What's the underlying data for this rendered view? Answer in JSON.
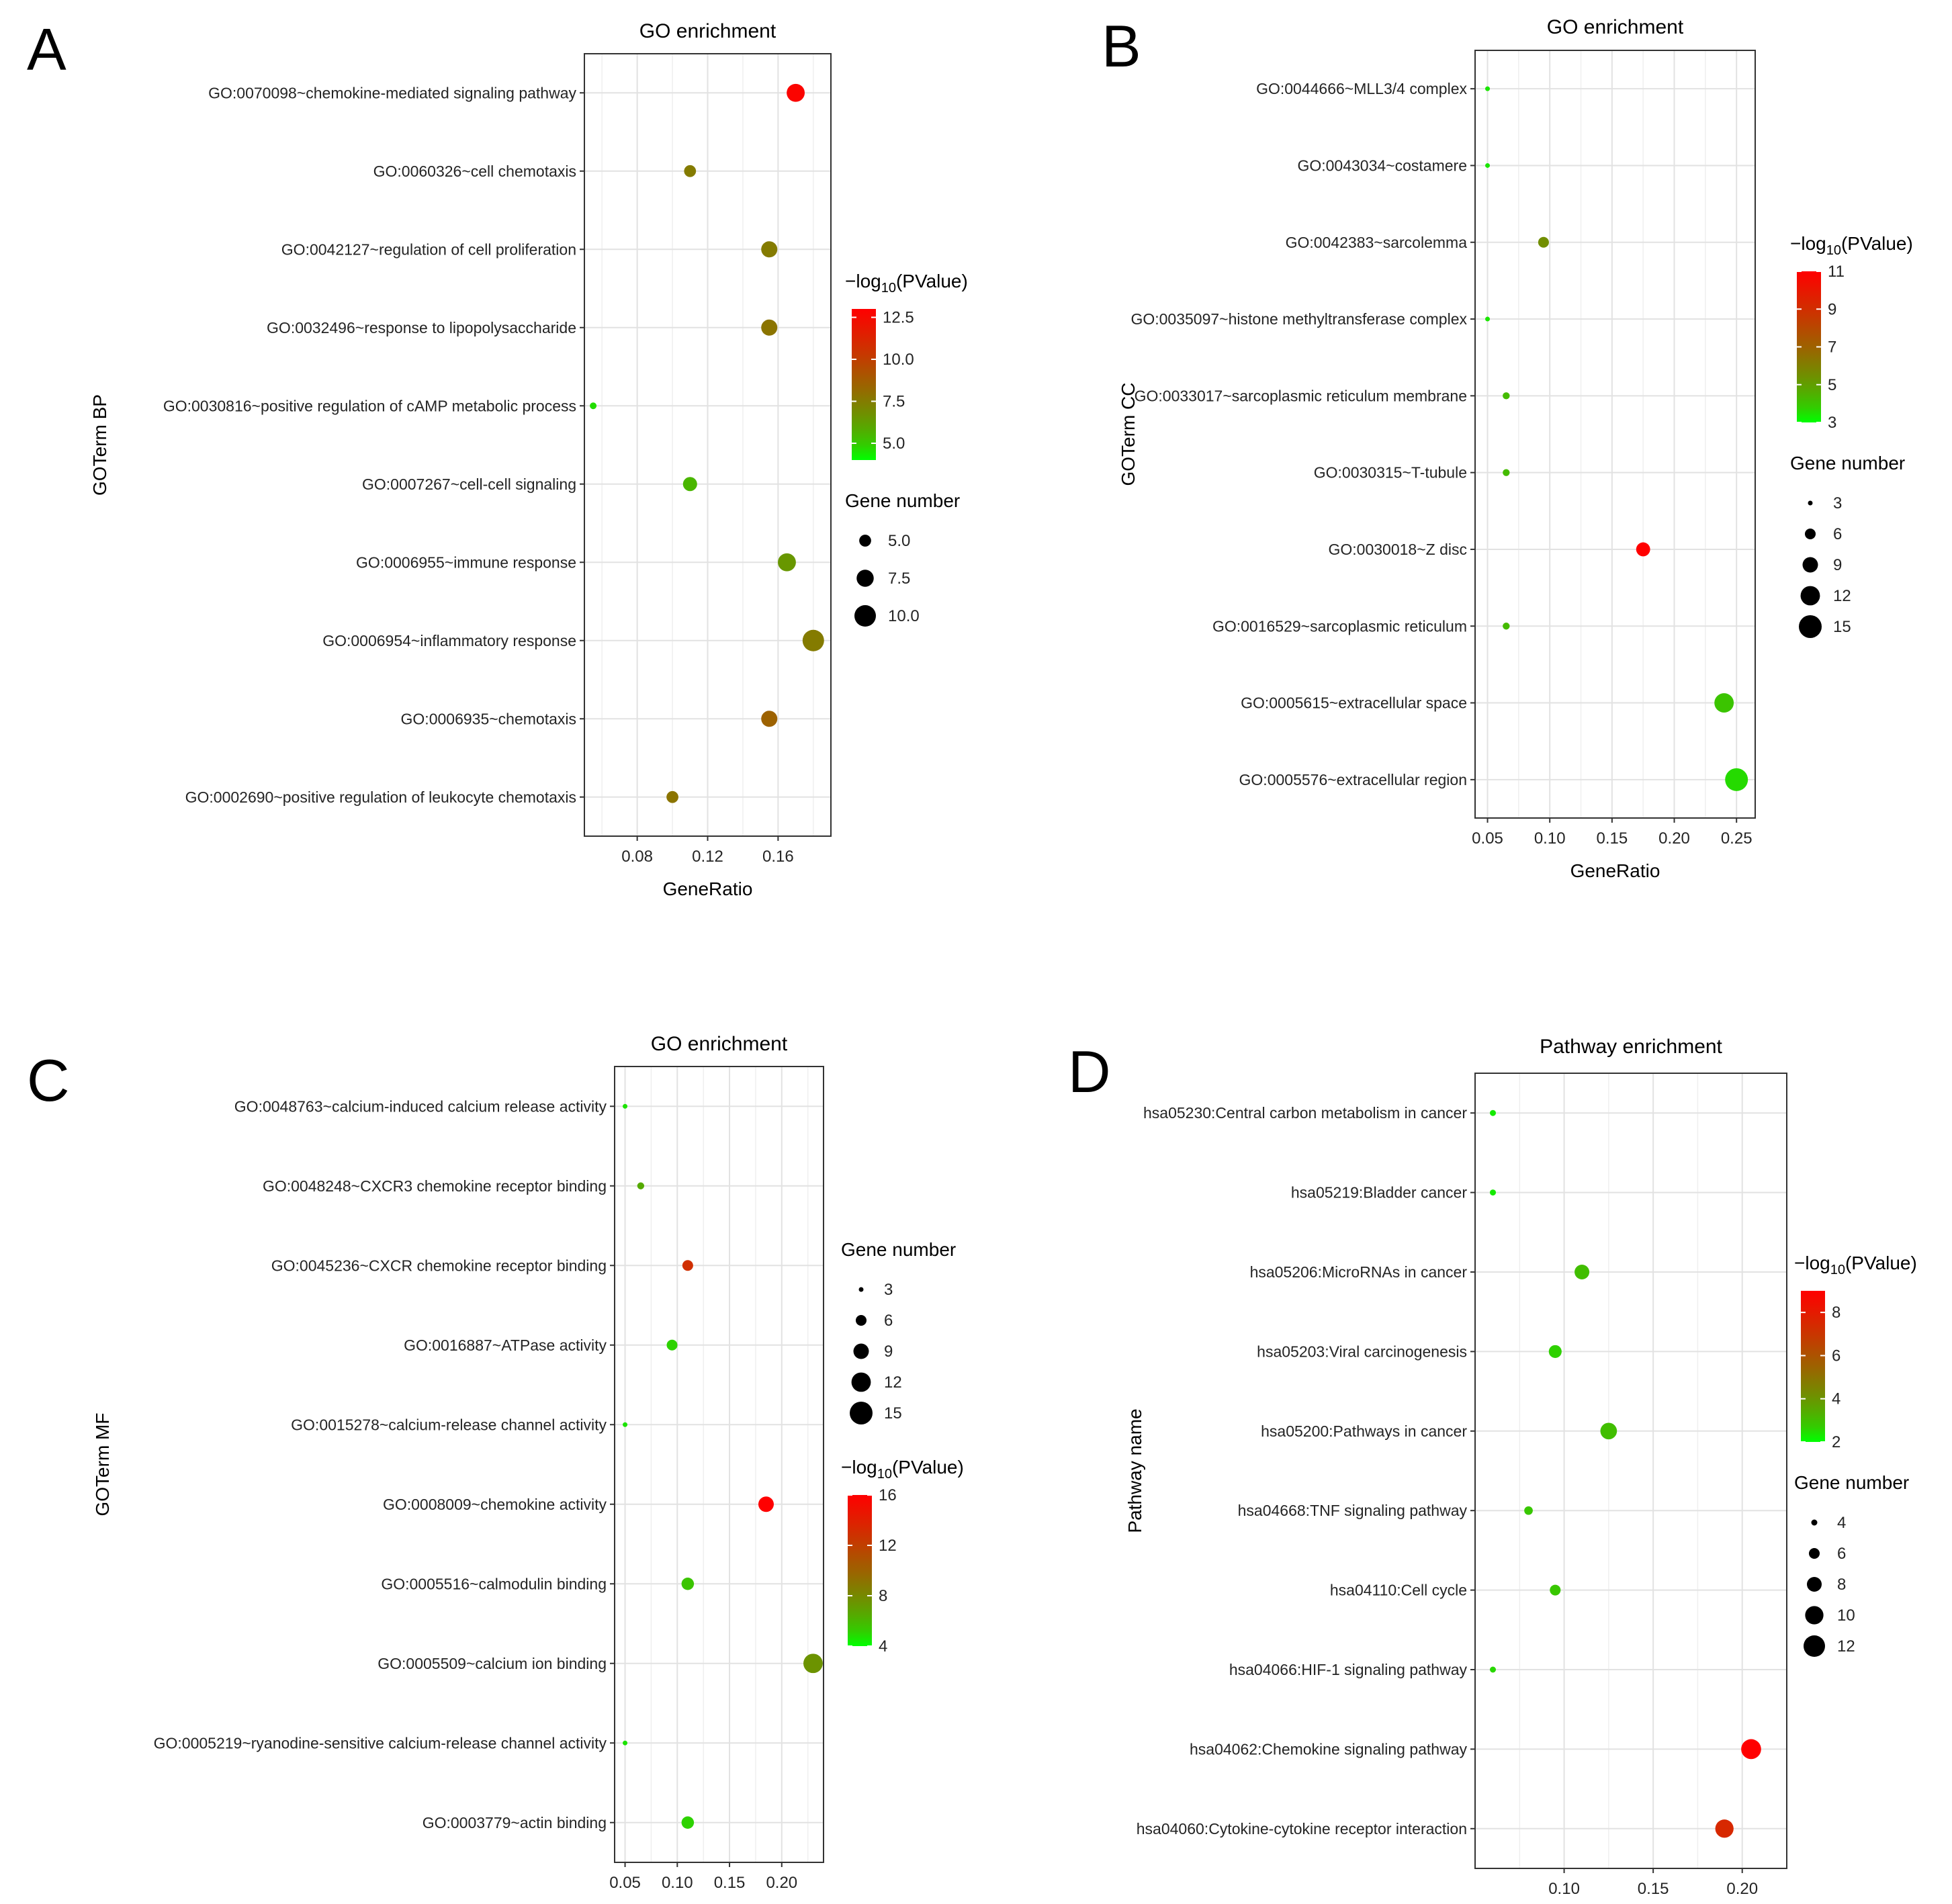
{
  "figure": {
    "background": "#ffffff",
    "low_color": "#00ff00",
    "high_color": "#ff0000"
  },
  "chart_data": [
    {
      "panel_label": "A",
      "type": "scatter",
      "title": "GO enrichment",
      "xlabel": "GeneRatio",
      "ylabel": "GOTerm BP",
      "xlim": [
        0.05,
        0.19
      ],
      "xticks": [
        0.08,
        0.12,
        0.16
      ],
      "xtick_labels": [
        "0.08",
        "0.12",
        "0.16"
      ],
      "color_legend": {
        "title_prefix": "−log",
        "title_sub": "10",
        "title_suffix": "(PValue)",
        "min": 4,
        "max": 13,
        "ticks": [
          12.5,
          10.0,
          7.5,
          5.0
        ],
        "tick_labels": [
          "12.5",
          "10.0",
          "7.5",
          "5.0"
        ]
      },
      "size_legend": {
        "title": "Gene number",
        "domain": [
          3,
          10
        ],
        "values": [
          5,
          7.5,
          10
        ],
        "labels": [
          "5.0",
          "7.5",
          "10.0"
        ]
      },
      "rows": [
        {
          "category": "GO:0070098~chemokine-mediated signaling pathway",
          "gene_ratio": 0.17,
          "gene_number": 8,
          "neg_log10_pvalue": 12.8
        },
        {
          "category": "GO:0060326~cell chemotaxis",
          "gene_ratio": 0.11,
          "gene_number": 5,
          "neg_log10_pvalue": 7.5
        },
        {
          "category": "GO:0042127~regulation of cell proliferation",
          "gene_ratio": 0.155,
          "gene_number": 7,
          "neg_log10_pvalue": 7.5
        },
        {
          "category": "GO:0032496~response to lipopolysaccharide",
          "gene_ratio": 0.155,
          "gene_number": 7,
          "neg_log10_pvalue": 7.8
        },
        {
          "category": "GO:0030816~positive regulation of cAMP metabolic process",
          "gene_ratio": 0.055,
          "gene_number": 3,
          "neg_log10_pvalue": 4.5
        },
        {
          "category": "GO:0007267~cell-cell signaling",
          "gene_ratio": 0.11,
          "gene_number": 6,
          "neg_log10_pvalue": 5.5
        },
        {
          "category": "GO:0006955~immune response",
          "gene_ratio": 0.165,
          "gene_number": 8,
          "neg_log10_pvalue": 6.5
        },
        {
          "category": "GO:0006954~inflammatory response",
          "gene_ratio": 0.18,
          "gene_number": 10,
          "neg_log10_pvalue": 7.5
        },
        {
          "category": "GO:0006935~chemotaxis",
          "gene_ratio": 0.155,
          "gene_number": 7,
          "neg_log10_pvalue": 8.5
        },
        {
          "category": "GO:0002690~positive regulation of leukocyte chemotaxis",
          "gene_ratio": 0.1,
          "gene_number": 5,
          "neg_log10_pvalue": 7.8
        }
      ]
    },
    {
      "panel_label": "B",
      "type": "scatter",
      "title": "GO enrichment",
      "xlabel": "GeneRatio",
      "ylabel": "GOTerm CC",
      "xlim": [
        0.04,
        0.265
      ],
      "xticks": [
        0.05,
        0.1,
        0.15,
        0.2,
        0.25
      ],
      "xtick_labels": [
        "0.05",
        "0.10",
        "0.15",
        "0.20",
        "0.25"
      ],
      "color_legend": {
        "title_prefix": "−log",
        "title_sub": "10",
        "title_suffix": "(PValue)",
        "min": 3,
        "max": 11,
        "ticks": [
          11,
          9,
          7,
          5,
          3
        ],
        "tick_labels": [
          "11",
          "9",
          "7",
          "5",
          "3"
        ]
      },
      "size_legend": {
        "title": "Gene number",
        "domain": [
          3,
          15
        ],
        "values": [
          3,
          6,
          9,
          12,
          15
        ],
        "labels": [
          "3",
          "6",
          "9",
          "12",
          "15"
        ]
      },
      "rows": [
        {
          "category": "GO:0044666~MLL3/4 complex",
          "gene_ratio": 0.05,
          "gene_number": 3,
          "neg_log10_pvalue": 3.3
        },
        {
          "category": "GO:0043034~costamere",
          "gene_ratio": 0.05,
          "gene_number": 3,
          "neg_log10_pvalue": 3.3
        },
        {
          "category": "GO:0042383~sarcolemma",
          "gene_ratio": 0.095,
          "gene_number": 6,
          "neg_log10_pvalue": 5.5
        },
        {
          "category": "GO:0035097~histone methyltransferase complex",
          "gene_ratio": 0.05,
          "gene_number": 3,
          "neg_log10_pvalue": 3.3
        },
        {
          "category": "GO:0033017~sarcoplasmic reticulum membrane",
          "gene_ratio": 0.065,
          "gene_number": 4,
          "neg_log10_pvalue": 4.2
        },
        {
          "category": "GO:0030315~T-tubule",
          "gene_ratio": 0.065,
          "gene_number": 4,
          "neg_log10_pvalue": 4.2
        },
        {
          "category": "GO:0030018~Z disc",
          "gene_ratio": 0.175,
          "gene_number": 8,
          "neg_log10_pvalue": 11
        },
        {
          "category": "GO:0016529~sarcoplasmic reticulum",
          "gene_ratio": 0.065,
          "gene_number": 4,
          "neg_log10_pvalue": 4.2
        },
        {
          "category": "GO:0005615~extracellular space",
          "gene_ratio": 0.24,
          "gene_number": 12,
          "neg_log10_pvalue": 4.0
        },
        {
          "category": "GO:0005576~extracellular region",
          "gene_ratio": 0.25,
          "gene_number": 15,
          "neg_log10_pvalue": 3.5
        }
      ]
    },
    {
      "panel_label": "C",
      "type": "scatter",
      "title": "GO enrichment",
      "xlabel": "GeneRatio",
      "ylabel": "GOTerm MF",
      "xlim": [
        0.04,
        0.24
      ],
      "xticks": [
        0.05,
        0.1,
        0.15,
        0.2
      ],
      "xtick_labels": [
        "0.05",
        "0.10",
        "0.15",
        "0.20"
      ],
      "color_legend": {
        "title_prefix": "−log",
        "title_sub": "10",
        "title_suffix": "(PValue)",
        "min": 4,
        "max": 16,
        "ticks": [
          16,
          12,
          8,
          4
        ],
        "tick_labels": [
          "16",
          "12",
          "8",
          "4"
        ]
      },
      "size_legend": {
        "title": "Gene number",
        "domain": [
          3,
          15
        ],
        "values": [
          3,
          6,
          9,
          12,
          15
        ],
        "labels": [
          "3",
          "6",
          "9",
          "12",
          "15"
        ]
      },
      "rows": [
        {
          "category": "GO:0048763~calcium-induced calcium release activity",
          "gene_ratio": 0.05,
          "gene_number": 3,
          "neg_log10_pvalue": 4.5
        },
        {
          "category": "GO:0048248~CXCR3 chemokine receptor binding",
          "gene_ratio": 0.065,
          "gene_number": 4,
          "neg_log10_pvalue": 6.5
        },
        {
          "category": "GO:0045236~CXCR chemokine receptor binding",
          "gene_ratio": 0.11,
          "gene_number": 6,
          "neg_log10_pvalue": 13
        },
        {
          "category": "GO:0016887~ATPase activity",
          "gene_ratio": 0.095,
          "gene_number": 6,
          "neg_log10_pvalue": 5
        },
        {
          "category": "GO:0015278~calcium-release channel activity",
          "gene_ratio": 0.05,
          "gene_number": 3,
          "neg_log10_pvalue": 4.5
        },
        {
          "category": "GO:0008009~chemokine activity",
          "gene_ratio": 0.185,
          "gene_number": 9,
          "neg_log10_pvalue": 16
        },
        {
          "category": "GO:0005516~calmodulin binding",
          "gene_ratio": 0.11,
          "gene_number": 7,
          "neg_log10_pvalue": 5.5
        },
        {
          "category": "GO:0005509~calcium ion binding",
          "gene_ratio": 0.23,
          "gene_number": 12,
          "neg_log10_pvalue": 7.5
        },
        {
          "category": "GO:0005219~ryanodine-sensitive calcium-release channel activity",
          "gene_ratio": 0.05,
          "gene_number": 3,
          "neg_log10_pvalue": 4.5
        },
        {
          "category": "GO:0003779~actin binding",
          "gene_ratio": 0.11,
          "gene_number": 7,
          "neg_log10_pvalue": 5
        }
      ]
    },
    {
      "panel_label": "D",
      "type": "scatter",
      "title": "Pathway enrichment",
      "xlabel": "GeneRatio",
      "ylabel": "Pathway name",
      "xlim": [
        0.05,
        0.225
      ],
      "xticks": [
        0.1,
        0.15,
        0.2
      ],
      "xtick_labels": [
        "0.10",
        "0.15",
        "0.20"
      ],
      "color_legend": {
        "title_prefix": "−log",
        "title_sub": "10",
        "title_suffix": "(PValue)",
        "min": 2,
        "max": 9,
        "ticks": [
          8,
          6,
          4,
          2
        ],
        "tick_labels": [
          "8",
          "6",
          "4",
          "2"
        ]
      },
      "size_legend": {
        "title": "Gene number",
        "domain": [
          4,
          12
        ],
        "values": [
          4,
          6,
          8,
          10,
          12
        ],
        "labels": [
          "4",
          "6",
          "8",
          "10",
          "12"
        ]
      },
      "rows": [
        {
          "category": "hsa05230:Central carbon metabolism in cancer",
          "gene_ratio": 0.06,
          "gene_number": 4,
          "neg_log10_pvalue": 2.2
        },
        {
          "category": "hsa05219:Bladder cancer",
          "gene_ratio": 0.06,
          "gene_number": 4,
          "neg_log10_pvalue": 2.2
        },
        {
          "category": "hsa05206:MicroRNAs in cancer",
          "gene_ratio": 0.11,
          "gene_number": 8,
          "neg_log10_pvalue": 3.0
        },
        {
          "category": "hsa05203:Viral carcinogenesis",
          "gene_ratio": 0.095,
          "gene_number": 7,
          "neg_log10_pvalue": 2.6
        },
        {
          "category": "hsa05200:Pathways in cancer",
          "gene_ratio": 0.125,
          "gene_number": 9,
          "neg_log10_pvalue": 3.0
        },
        {
          "category": "hsa04668:TNF signaling pathway",
          "gene_ratio": 0.08,
          "gene_number": 5,
          "neg_log10_pvalue": 2.8
        },
        {
          "category": "hsa04110:Cell cycle",
          "gene_ratio": 0.095,
          "gene_number": 6,
          "neg_log10_pvalue": 2.8
        },
        {
          "category": "hsa04066:HIF-1 signaling pathway",
          "gene_ratio": 0.06,
          "gene_number": 4,
          "neg_log10_pvalue": 2.5
        },
        {
          "category": "hsa04062:Chemokine signaling pathway",
          "gene_ratio": 0.205,
          "gene_number": 11,
          "neg_log10_pvalue": 9.0
        },
        {
          "category": "hsa04060:Cytokine-cytokine receptor interaction",
          "gene_ratio": 0.19,
          "gene_number": 10,
          "neg_log10_pvalue": 7.5
        }
      ]
    }
  ]
}
